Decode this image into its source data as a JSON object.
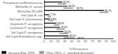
{
  "chart_data": {
    "type": "bar",
    "orientation": "horizontal",
    "xlabel": "% Resistance",
    "categories": [
      "Pneumococcus/Enterococcus",
      "Methicillin-S. aureus",
      "Methicillin-S/CoNS",
      "3rd Ceph-E. coli",
      "3rd Ceph-K. pneumoniae",
      "Imipenem-P. aeruginosa",
      "Quinolone-P. aeruginosa",
      "3rd Ceph-P. aeruginosa",
      "3rd Ceph-Enterobacter spp."
    ],
    "series": [
      {
        "name": "January-May, 1999",
        "color": "#111111",
        "values": [
          26.3,
          34.2,
          86.7,
          7.7,
          8.8,
          18.0,
          23.0,
          28.0,
          35.5
        ],
        "value_labels": [
          "26.3%",
          "34.2%",
          "86.7%",
          "7.7%",
          "8.8%",
          "18.0%",
          "23.0%",
          "28.0%",
          "35.5%"
        ]
      },
      {
        "name": "Other (95% +/- standard deviation)",
        "type": "range",
        "color": "#999999",
        "values": [
          [
            20.0,
            32.0
          ],
          [
            28.0,
            42.0
          ],
          [
            80.0,
            93.0
          ],
          [
            5.0,
            10.0
          ],
          [
            6.0,
            13.0
          ],
          [
            14.0,
            22.0
          ],
          [
            18.0,
            30.0
          ],
          [
            22.0,
            35.0
          ],
          [
            28.0,
            44.0
          ]
        ],
        "value_labels": [
          null,
          "38.7%",
          null,
          null,
          null,
          null,
          null,
          null,
          "38.5%"
        ]
      }
    ],
    "xlim": [
      0,
      100
    ],
    "xticks": [
      0,
      10,
      20,
      30,
      40,
      50,
      60,
      70,
      80,
      90,
      100
    ],
    "data_labels": true,
    "grid": false,
    "legend": "bottom"
  }
}
